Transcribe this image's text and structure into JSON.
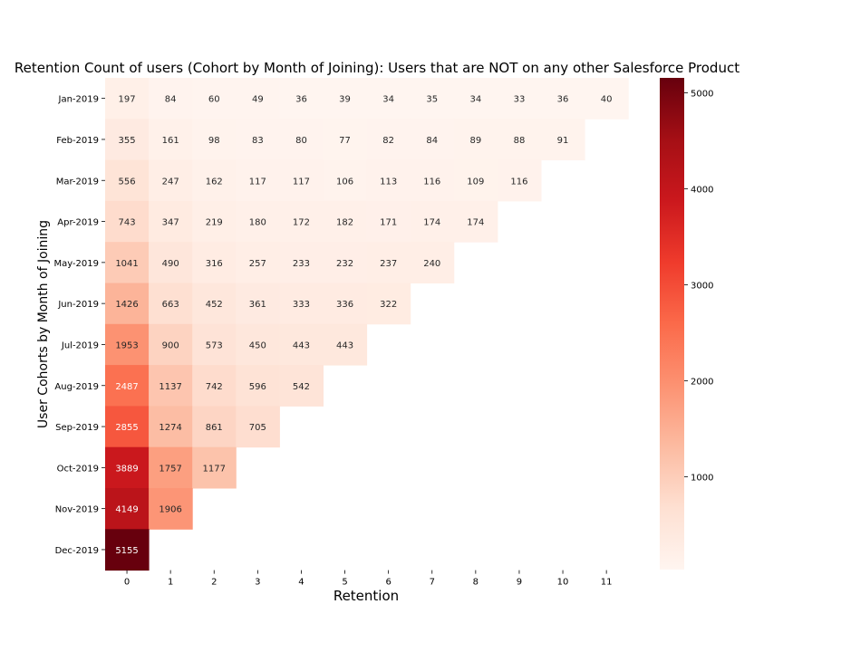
{
  "chart_data": {
    "type": "heatmap",
    "title": "Retention Count of users (Cohort by Month of Joining): Users that are NOT on any other Salesforce Product",
    "xlabel": "Retention",
    "ylabel": "User Cohorts by Month of Joining",
    "x": [
      "0",
      "1",
      "2",
      "3",
      "4",
      "5",
      "6",
      "7",
      "8",
      "9",
      "10",
      "11"
    ],
    "y": [
      "Jan-2019",
      "Feb-2019",
      "Mar-2019",
      "Apr-2019",
      "May-2019",
      "Jun-2019",
      "Jul-2019",
      "Aug-2019",
      "Sep-2019",
      "Oct-2019",
      "Nov-2019",
      "Dec-2019"
    ],
    "values": [
      [
        197,
        84,
        60,
        49,
        36,
        39,
        34,
        35,
        34,
        33,
        36,
        40
      ],
      [
        355,
        161,
        98,
        83,
        80,
        77,
        82,
        84,
        89,
        88,
        91
      ],
      [
        556,
        247,
        162,
        117,
        117,
        106,
        113,
        116,
        109,
        116
      ],
      [
        743,
        347,
        219,
        180,
        172,
        182,
        171,
        174,
        174
      ],
      [
        1041,
        490,
        316,
        257,
        233,
        232,
        237,
        240
      ],
      [
        1426,
        663,
        452,
        361,
        333,
        336,
        322
      ],
      [
        1953,
        900,
        573,
        450,
        443,
        443
      ],
      [
        2487,
        1137,
        742,
        596,
        542
      ],
      [
        2855,
        1274,
        861,
        705
      ],
      [
        3889,
        1757,
        1177
      ],
      [
        4149,
        1906
      ],
      [
        5155
      ]
    ],
    "colormap": "Reds",
    "colorbar": {
      "ticks": [
        1000,
        2000,
        3000,
        4000,
        5000
      ],
      "min": 33,
      "max": 5155
    }
  }
}
